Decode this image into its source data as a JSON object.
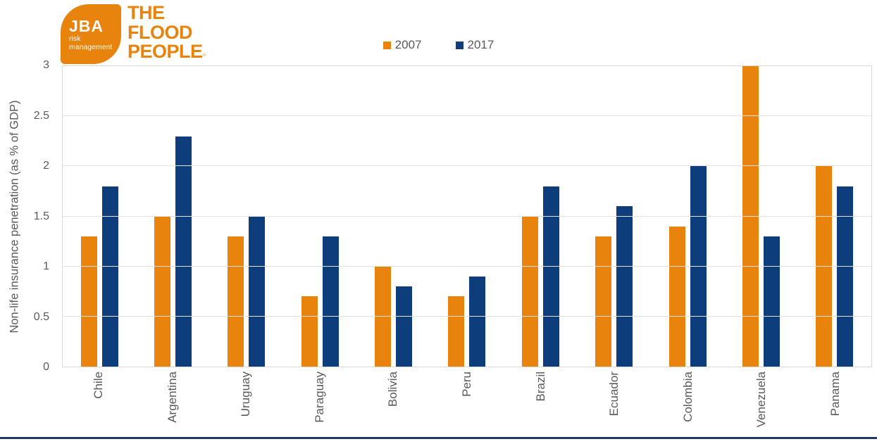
{
  "logo": {
    "jba": "JBA",
    "tagline_lines": [
      "risk",
      "management"
    ],
    "brand_lines": [
      "THE",
      "FLOOD",
      "PEOPLE"
    ],
    "brand_mark": "◦"
  },
  "colors": {
    "brand_orange": "#E8830D",
    "series_2007": "#E8830D",
    "series_2017": "#0E3D7C",
    "axis_text": "#595959",
    "gridline": "#E2E2E2",
    "bottom_rule": "#1F3864"
  },
  "legend": [
    {
      "label": "2007",
      "color": "#E8830D"
    },
    {
      "label": "2017",
      "color": "#0E3D7C"
    }
  ],
  "chart_data": {
    "type": "bar",
    "title": "",
    "xlabel": "",
    "ylabel": "Non-life insurance penetration (as % of GDP)",
    "ylim": [
      0,
      3
    ],
    "grid": true,
    "legend_position": "top-center",
    "yticks": [
      {
        "value": 0,
        "label": "0"
      },
      {
        "value": 0.5,
        "label": "0.5"
      },
      {
        "value": 1,
        "label": "1"
      },
      {
        "value": 1.5,
        "label": "1.5"
      },
      {
        "value": 2,
        "label": "2"
      },
      {
        "value": 2.5,
        "label": "2.5"
      },
      {
        "value": 3,
        "label": "3"
      }
    ],
    "categories": [
      "Chile",
      "Argentina",
      "Uruguay",
      "Paraguay",
      "Bolivia",
      "Peru",
      "Brazil",
      "Ecuador",
      "Colombia",
      "Venezuela",
      "Panama"
    ],
    "series": [
      {
        "name": "2007",
        "color": "#E8830D",
        "values": [
          1.3,
          1.5,
          1.3,
          0.7,
          1.0,
          0.7,
          1.5,
          1.3,
          1.4,
          3.0,
          2.0
        ]
      },
      {
        "name": "2017",
        "color": "#0E3D7C",
        "values": [
          1.8,
          2.3,
          1.5,
          1.3,
          0.8,
          0.9,
          1.8,
          1.6,
          2.0,
          1.3,
          1.8
        ]
      }
    ]
  }
}
